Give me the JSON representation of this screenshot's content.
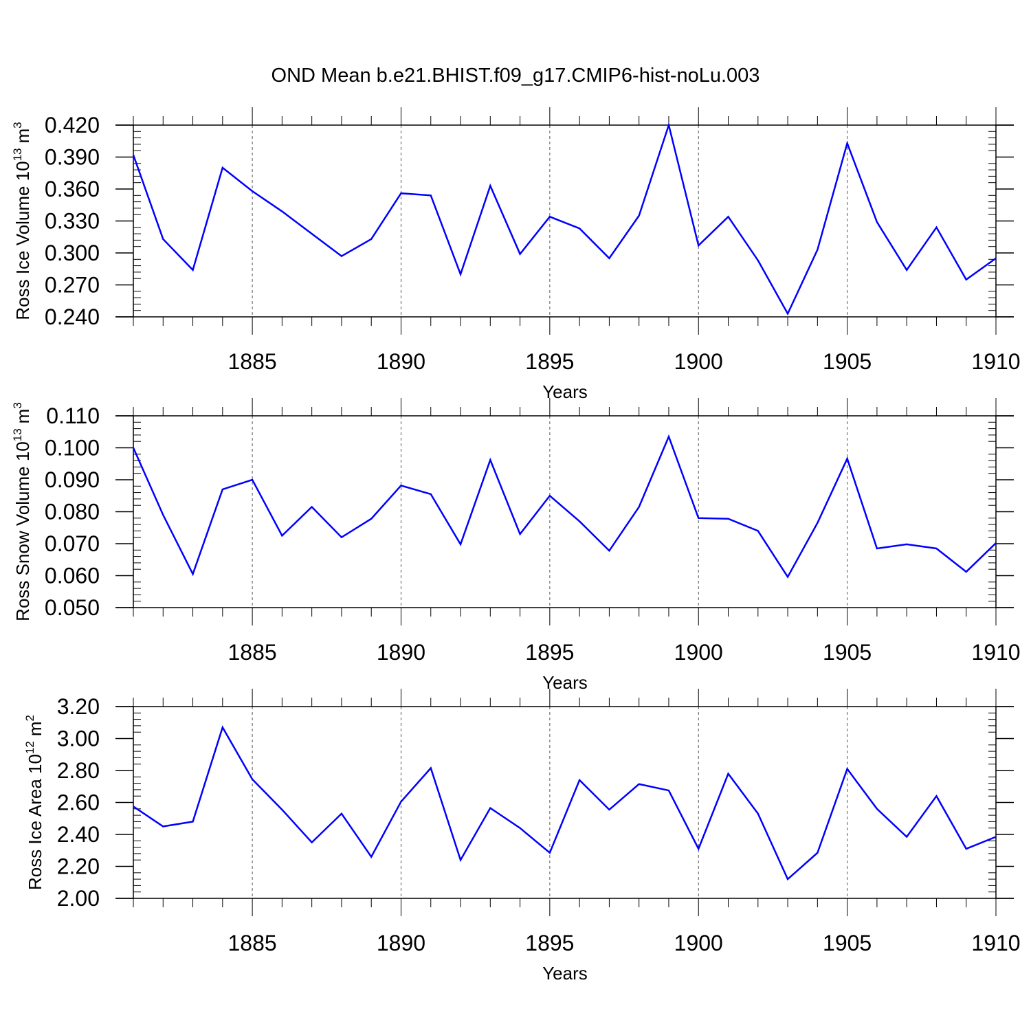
{
  "title": "OND Mean b.e21.BHIST.f09_g17.CMIP6-hist-noLu.003",
  "colors": {
    "line": "#0000ff",
    "axis": "#000000",
    "grid": "#555555"
  },
  "chart_data": [
    {
      "type": "line",
      "ylabel": {
        "text": "Ross Ice Volume 10",
        "exp": "13",
        "unit": "m",
        "unit_exp": "3"
      },
      "xlabel": "Years",
      "xlim": [
        1881,
        1910
      ],
      "ylim": [
        0.24,
        0.42
      ],
      "x_ticks": [
        "1885",
        "1890",
        "1895",
        "1900",
        "1905",
        "1910"
      ],
      "y_ticks": [
        "0.240",
        "0.270",
        "0.300",
        "0.330",
        "0.360",
        "0.390",
        "0.420"
      ],
      "grid": "dashed vertical lines at major x ticks",
      "x": [
        1881,
        1882,
        1883,
        1884,
        1885,
        1886,
        1887,
        1888,
        1889,
        1890,
        1891,
        1892,
        1893,
        1894,
        1895,
        1896,
        1897,
        1898,
        1899,
        1900,
        1901,
        1902,
        1903,
        1904,
        1905,
        1906,
        1907,
        1908,
        1909,
        1910
      ],
      "values": [
        0.392,
        0.313,
        0.284,
        0.38,
        0.358,
        0.339,
        0.318,
        0.297,
        0.313,
        0.356,
        0.354,
        0.28,
        0.363,
        0.299,
        0.334,
        0.323,
        0.295,
        0.335,
        0.42,
        0.307,
        0.334,
        0.293,
        0.243,
        0.303,
        0.403,
        0.329,
        0.284,
        0.324,
        0.275,
        0.295
      ]
    },
    {
      "type": "line",
      "ylabel": {
        "text": "Ross Snow Volume 10",
        "exp": "13",
        "unit": "m",
        "unit_exp": "3"
      },
      "xlabel": "Years",
      "xlim": [
        1881,
        1910
      ],
      "ylim": [
        0.05,
        0.11
      ],
      "x_ticks": [
        "1885",
        "1890",
        "1895",
        "1900",
        "1905",
        "1910"
      ],
      "y_ticks": [
        "0.050",
        "0.060",
        "0.070",
        "0.080",
        "0.090",
        "0.100",
        "0.110"
      ],
      "grid": "dashed vertical lines at major x ticks",
      "x": [
        1881,
        1882,
        1883,
        1884,
        1885,
        1886,
        1887,
        1888,
        1889,
        1890,
        1891,
        1892,
        1893,
        1894,
        1895,
        1896,
        1897,
        1898,
        1899,
        1900,
        1901,
        1902,
        1903,
        1904,
        1905,
        1906,
        1907,
        1908,
        1909,
        1910
      ],
      "values": [
        0.1,
        0.079,
        0.0605,
        0.087,
        0.09,
        0.0725,
        0.0815,
        0.072,
        0.0778,
        0.0882,
        0.0855,
        0.0698,
        0.0962,
        0.073,
        0.085,
        0.077,
        0.0678,
        0.0815,
        0.1035,
        0.078,
        0.0778,
        0.074,
        0.0596,
        0.0765,
        0.0966,
        0.0685,
        0.0698,
        0.0685,
        0.0612,
        0.0702
      ]
    },
    {
      "type": "line",
      "ylabel": {
        "text": "Ross Ice Area 10",
        "exp": "12",
        "unit": "m",
        "unit_exp": "2"
      },
      "xlabel": "Years",
      "xlim": [
        1881,
        1910
      ],
      "ylim": [
        2.0,
        3.2
      ],
      "x_ticks": [
        "1885",
        "1890",
        "1895",
        "1900",
        "1905",
        "1910"
      ],
      "y_ticks": [
        "2.00",
        "2.20",
        "2.40",
        "2.60",
        "2.80",
        "3.00",
        "3.20"
      ],
      "grid": "dashed vertical lines at major x ticks",
      "x": [
        1881,
        1882,
        1883,
        1884,
        1885,
        1886,
        1887,
        1888,
        1889,
        1890,
        1891,
        1892,
        1893,
        1894,
        1895,
        1896,
        1897,
        1898,
        1899,
        1900,
        1901,
        1902,
        1903,
        1904,
        1905,
        1906,
        1907,
        1908,
        1909,
        1910
      ],
      "values": [
        2.575,
        2.45,
        2.48,
        3.07,
        2.745,
        2.555,
        2.35,
        2.53,
        2.26,
        2.605,
        2.815,
        2.24,
        2.565,
        2.44,
        2.285,
        2.74,
        2.555,
        2.715,
        2.675,
        2.31,
        2.78,
        2.53,
        2.12,
        2.285,
        2.81,
        2.56,
        2.385,
        2.64,
        2.31,
        2.385
      ]
    }
  ]
}
